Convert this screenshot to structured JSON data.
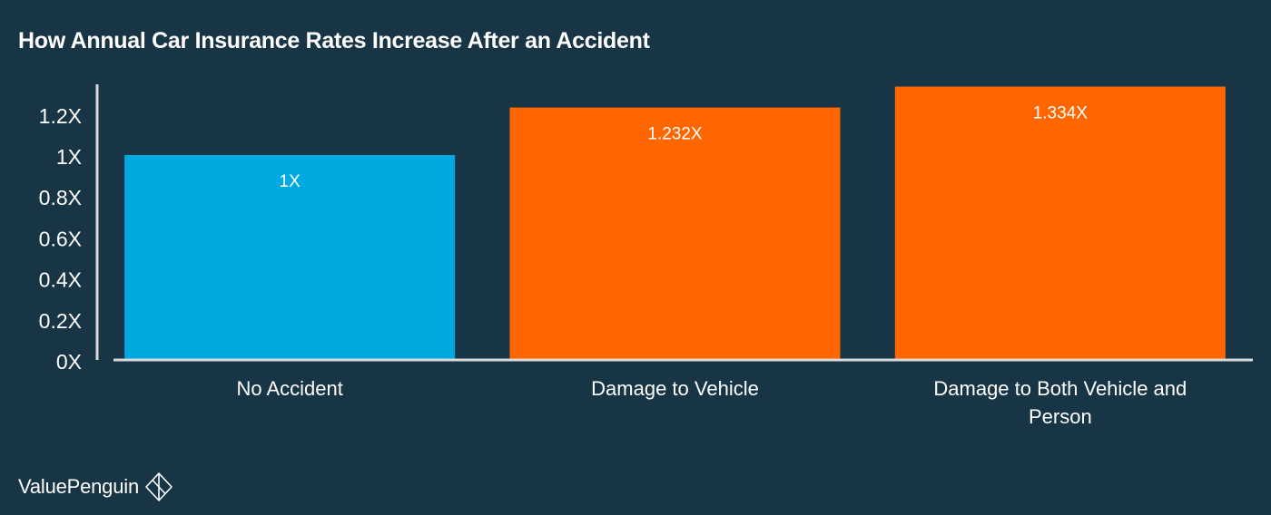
{
  "chart_data": {
    "type": "bar",
    "title": "How Annual Car Insurance Rates Increase After an Accident",
    "categories": [
      [
        "No Accident"
      ],
      [
        "Damage to Vehicle"
      ],
      [
        "Damage to Both Vehicle and",
        "Person"
      ]
    ],
    "values": [
      1,
      1.232,
      1.334
    ],
    "value_labels": [
      "1X",
      "1.232X",
      "1.334X"
    ],
    "bar_colors": [
      "#00A9E0",
      "#FF6600",
      "#FF6600"
    ],
    "y_ticks": [
      {
        "value": 0,
        "label": "0X"
      },
      {
        "value": 0.2,
        "label": "0.2X"
      },
      {
        "value": 0.4,
        "label": "0.4X"
      },
      {
        "value": 0.6,
        "label": "0.6X"
      },
      {
        "value": 0.8,
        "label": "0.8X"
      },
      {
        "value": 1,
        "label": "1X"
      },
      {
        "value": 1.2,
        "label": "1.2X"
      }
    ],
    "ylim": [
      0,
      1.35
    ],
    "grid": false,
    "background": "#173544",
    "axis_color": "#D9D9D9"
  },
  "brand": {
    "name": "ValuePenguin",
    "icon": "penguin-diamond-icon"
  }
}
